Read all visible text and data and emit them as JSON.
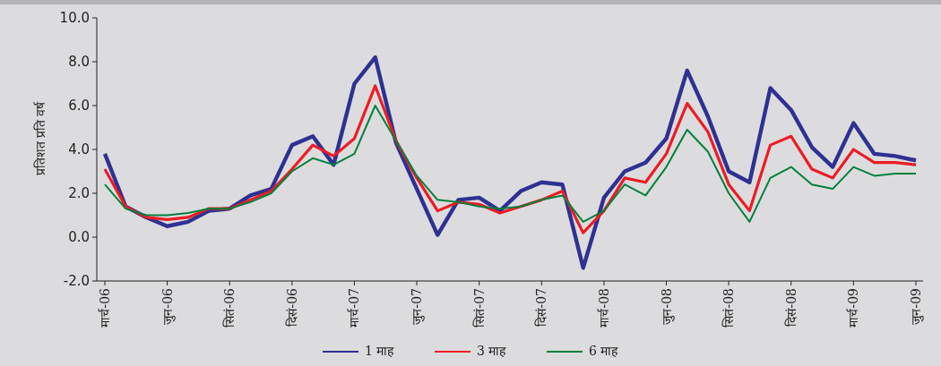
{
  "chart_data": {
    "type": "line",
    "ylabel": "प्रतिशत प्रति वर्ष",
    "categories": [
      "मार्च-06",
      null,
      null,
      "जुन-06",
      null,
      null,
      "सितं-06",
      null,
      null,
      "दिसं-06",
      null,
      null,
      "मार्च-07",
      null,
      null,
      "जुन-07",
      null,
      null,
      "सितं-07",
      null,
      null,
      "दिसं-07",
      null,
      null,
      "मार्च-08",
      null,
      null,
      "जुन-08",
      null,
      null,
      "सितं-08",
      null,
      null,
      "दिसं-08",
      null,
      null,
      "मार्च-09",
      null,
      null,
      "जुन-09"
    ],
    "series": [
      {
        "name": "1 माह",
        "color": "#2e3192",
        "values": [
          3.8,
          1.4,
          0.9,
          0.5,
          0.7,
          1.2,
          1.3,
          1.9,
          2.2,
          4.2,
          4.6,
          3.3,
          7.0,
          8.2,
          4.3,
          2.2,
          0.1,
          1.7,
          1.8,
          1.2,
          2.1,
          2.5,
          2.4,
          -1.4,
          1.8,
          3.0,
          3.4,
          4.5,
          7.6,
          5.5,
          3.0,
          2.5,
          6.8,
          5.8,
          4.1,
          3.2,
          5.2,
          3.8,
          3.7,
          3.5
        ]
      },
      {
        "name": "3 माह",
        "color": "#ed1c24",
        "values": [
          3.1,
          1.4,
          0.9,
          0.8,
          0.9,
          1.3,
          1.3,
          1.7,
          2.1,
          3.1,
          4.2,
          3.7,
          4.5,
          6.9,
          4.4,
          2.7,
          1.2,
          1.6,
          1.5,
          1.1,
          1.4,
          1.7,
          2.1,
          0.2,
          1.2,
          2.7,
          2.5,
          3.8,
          6.1,
          4.8,
          2.4,
          1.2,
          4.2,
          4.6,
          3.1,
          2.7,
          4.0,
          3.4,
          3.4,
          3.3
        ]
      },
      {
        "name": "6 माह",
        "color": "#00803c",
        "values": [
          2.4,
          1.3,
          1.0,
          1.0,
          1.1,
          1.3,
          1.3,
          1.6,
          2.0,
          3.0,
          3.6,
          3.3,
          3.8,
          6.0,
          4.4,
          2.8,
          1.7,
          1.6,
          1.4,
          1.3,
          1.4,
          1.7,
          1.9,
          0.7,
          1.2,
          2.4,
          1.9,
          3.2,
          4.9,
          3.9,
          2.0,
          0.7,
          2.7,
          3.2,
          2.4,
          2.2,
          3.2,
          2.8,
          2.9,
          2.9
        ]
      }
    ],
    "ylim": [
      -2,
      10
    ],
    "yticks": [
      {
        "value": -2,
        "label": "-2.0"
      },
      {
        "value": 0,
        "label": "0.0"
      },
      {
        "value": 2,
        "label": "2.0"
      },
      {
        "value": 4,
        "label": "4.0"
      },
      {
        "value": 6,
        "label": "6.0"
      },
      {
        "value": 8,
        "label": "8.0"
      },
      {
        "value": 10,
        "label": "10.0"
      }
    ],
    "legend": "bottom",
    "line_style": "solid"
  }
}
